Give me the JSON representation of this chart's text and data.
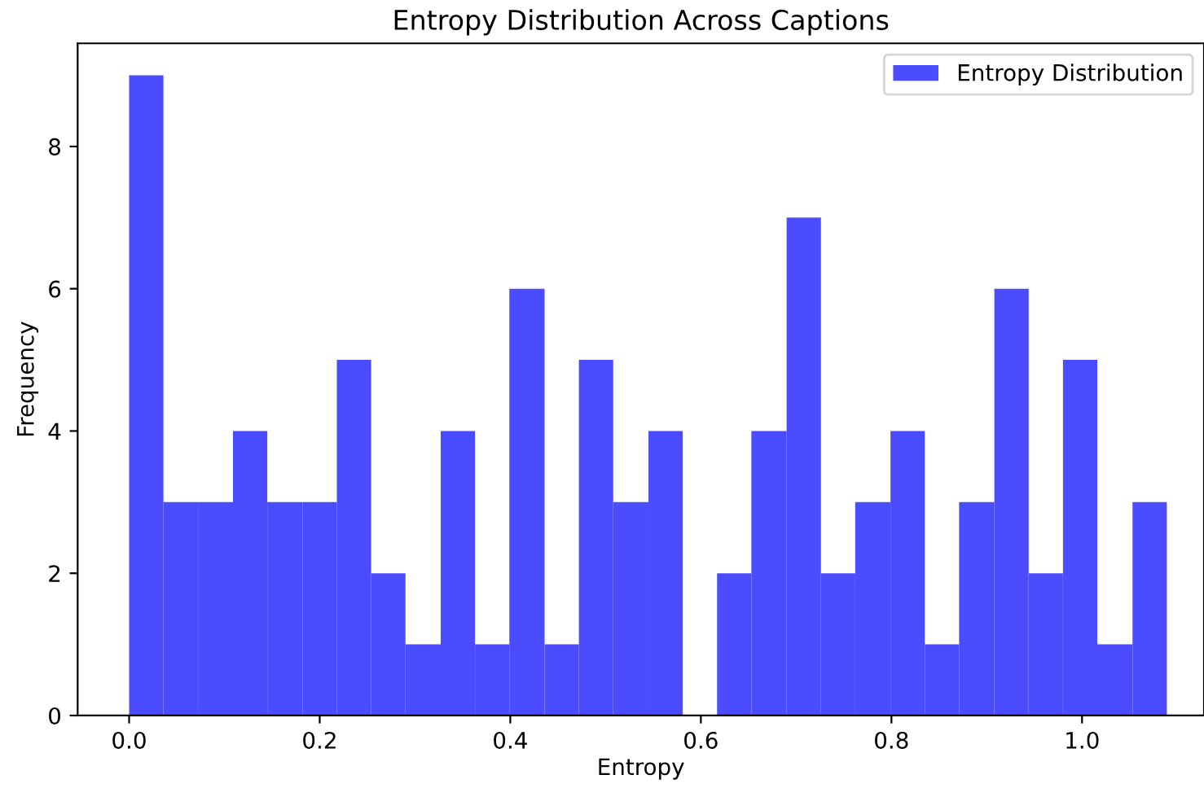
{
  "chart_data": {
    "type": "histogram",
    "title": "Entropy Distribution Across Captions",
    "xlabel": "Entropy",
    "ylabel": "Frequency",
    "bins": [
      0,
      0.036,
      0.073,
      0.109,
      0.145,
      0.182,
      0.218,
      0.254,
      0.29,
      0.327,
      0.363,
      0.399,
      0.436,
      0.472,
      0.508,
      0.545,
      0.581,
      0.617,
      0.653,
      0.69,
      0.726,
      0.762,
      0.799,
      0.835,
      0.871,
      0.908,
      0.944,
      0.98,
      1.016,
      1.053,
      1.089
    ],
    "series": [
      {
        "name": "Entropy Distribution",
        "color": "#4b4bff",
        "values": [
          9,
          3,
          3,
          4,
          3,
          3,
          5,
          2,
          1,
          4,
          1,
          6,
          1,
          5,
          3,
          4,
          0,
          2,
          4,
          7,
          2,
          3,
          4,
          1,
          3,
          6,
          2,
          5,
          1,
          3
        ]
      }
    ],
    "xlim": [
      -0.054,
      1.128
    ],
    "ylim": [
      0,
      9.45
    ],
    "xticks": [
      {
        "value": 0,
        "label": "0.0"
      },
      0.2,
      0.4,
      0.6,
      0.8,
      {
        "value": 1,
        "label": "1.0"
      }
    ],
    "yticks": [
      0,
      2,
      4,
      6,
      8
    ],
    "grid": false,
    "legend": "top right"
  }
}
